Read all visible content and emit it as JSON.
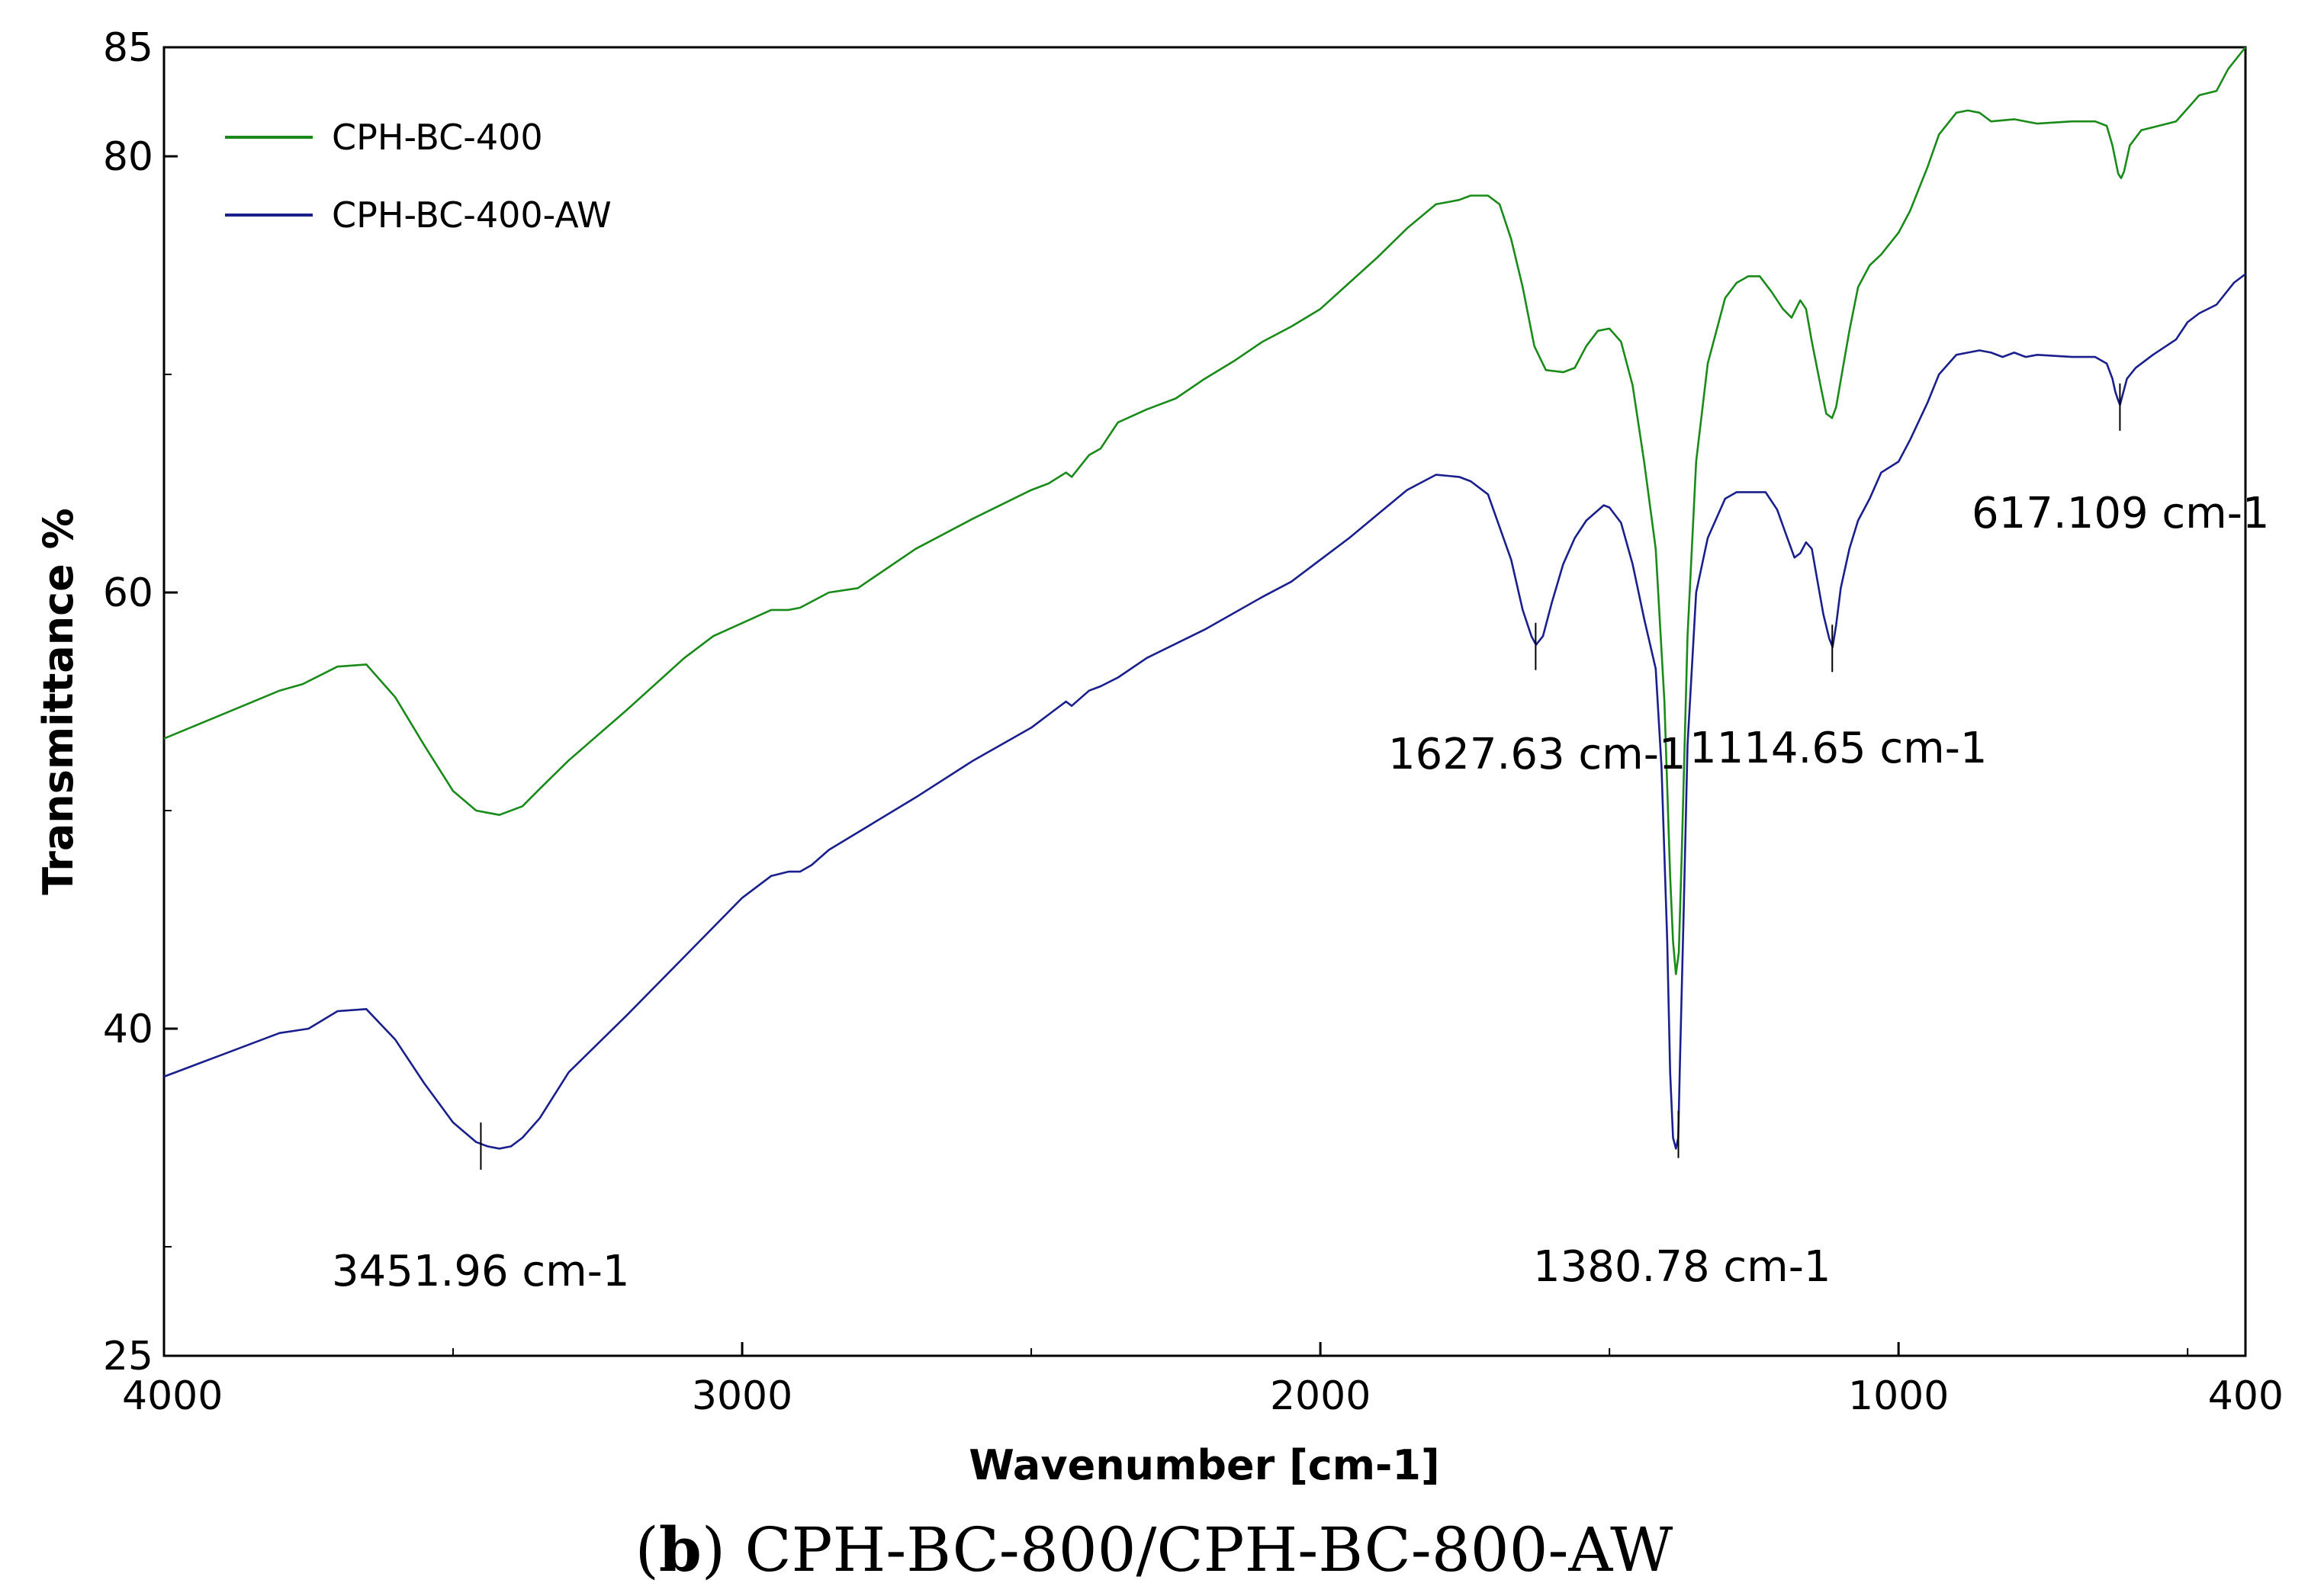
{
  "chart_data": {
    "type": "line",
    "title": "",
    "xlabel": "Wavenumber [cm-1]",
    "ylabel": "Transmittance %",
    "xlim": [
      4000,
      400
    ],
    "ylim": [
      25,
      85
    ],
    "xticks": [
      4000,
      3000,
      2000,
      1000,
      400
    ],
    "xtick_labels": [
      "4000",
      "3000",
      "2000",
      "1000",
      "400"
    ],
    "yticks": [
      25,
      40,
      60,
      80,
      85
    ],
    "ytick_labels": [
      "25",
      "40",
      "60",
      "80",
      "85"
    ],
    "legend_position": "top-left",
    "series": [
      {
        "name": "CPH-BC-400",
        "color": "#1a8a1a",
        "x": [
          4000,
          3900,
          3800,
          3760,
          3700,
          3650,
          3600,
          3550,
          3500,
          3460,
          3420,
          3380,
          3350,
          3300,
          3200,
          3100,
          3050,
          2950,
          2920,
          2900,
          2850,
          2800,
          2700,
          2600,
          2500,
          2470,
          2440,
          2430,
          2400,
          2380,
          2350,
          2300,
          2250,
          2200,
          2150,
          2100,
          2050,
          2000,
          1950,
          1900,
          1850,
          1800,
          1760,
          1740,
          1710,
          1690,
          1670,
          1650,
          1630,
          1610,
          1580,
          1560,
          1540,
          1520,
          1500,
          1480,
          1460,
          1440,
          1420,
          1405,
          1395,
          1390,
          1385,
          1380,
          1375,
          1365,
          1350,
          1330,
          1300,
          1280,
          1260,
          1240,
          1220,
          1200,
          1185,
          1170,
          1160,
          1150,
          1135,
          1125,
          1115,
          1108,
          1095,
          1085,
          1070,
          1050,
          1030,
          1000,
          980,
          950,
          930,
          900,
          880,
          860,
          850,
          840,
          800,
          760,
          700,
          660,
          640,
          630,
          620,
          615,
          610,
          600,
          580,
          550,
          520,
          500,
          480,
          450,
          430,
          400
        ],
        "values": [
          53.3,
          54.4,
          55.5,
          55.8,
          56.6,
          56.7,
          55.2,
          53.0,
          50.9,
          50.0,
          49.8,
          50.2,
          51.0,
          52.3,
          54.6,
          57.0,
          58.0,
          59.2,
          59.2,
          59.3,
          60.0,
          60.2,
          62.0,
          63.4,
          64.7,
          65.0,
          65.5,
          65.3,
          66.3,
          66.6,
          67.8,
          68.4,
          68.9,
          69.8,
          70.6,
          71.5,
          72.2,
          73.0,
          74.2,
          75.4,
          76.7,
          77.8,
          78.0,
          78.2,
          78.2,
          77.8,
          76.2,
          74.0,
          71.3,
          70.2,
          70.1,
          70.3,
          71.3,
          72.0,
          72.1,
          71.5,
          69.5,
          66.0,
          62.0,
          55.0,
          47.0,
          44.0,
          42.5,
          43.5,
          48.0,
          58.0,
          66.0,
          70.5,
          73.5,
          74.2,
          74.5,
          74.5,
          73.8,
          73.0,
          72.6,
          73.4,
          73.0,
          71.5,
          69.5,
          68.2,
          68.0,
          68.5,
          70.5,
          72.0,
          74.0,
          75.0,
          75.5,
          76.5,
          77.5,
          79.5,
          81.0,
          82.0,
          82.1,
          82.0,
          81.8,
          81.6,
          81.7,
          81.5,
          81.6,
          81.6,
          81.4,
          80.5,
          79.2,
          79.0,
          79.3,
          80.5,
          81.2,
          81.4,
          81.6,
          82.2,
          82.8,
          83.0,
          84.0,
          85.0
        ]
      },
      {
        "name": "CPH-BC-400-AW",
        "color": "#1a1f8c",
        "x": [
          4000,
          3900,
          3800,
          3750,
          3700,
          3650,
          3600,
          3550,
          3500,
          3460,
          3440,
          3420,
          3400,
          3380,
          3350,
          3300,
          3200,
          3100,
          3000,
          2950,
          2920,
          2900,
          2880,
          2850,
          2800,
          2700,
          2600,
          2500,
          2460,
          2440,
          2430,
          2400,
          2380,
          2350,
          2300,
          2200,
          2100,
          2050,
          2000,
          1950,
          1900,
          1850,
          1800,
          1760,
          1740,
          1710,
          1690,
          1670,
          1650,
          1635,
          1627,
          1615,
          1600,
          1580,
          1560,
          1540,
          1510,
          1500,
          1480,
          1460,
          1440,
          1420,
          1410,
          1400,
          1395,
          1390,
          1385,
          1381,
          1378,
          1372,
          1365,
          1350,
          1330,
          1300,
          1280,
          1250,
          1230,
          1210,
          1195,
          1180,
          1170,
          1160,
          1150,
          1140,
          1130,
          1120,
          1114,
          1108,
          1100,
          1085,
          1070,
          1050,
          1030,
          1000,
          980,
          950,
          930,
          900,
          880,
          860,
          840,
          820,
          800,
          780,
          760,
          700,
          660,
          640,
          630,
          625,
          620,
          617,
          613,
          605,
          590,
          560,
          520,
          500,
          480,
          450,
          420,
          400
        ],
        "values": [
          37.8,
          38.8,
          39.8,
          40.0,
          40.8,
          40.9,
          39.5,
          37.5,
          35.7,
          34.8,
          34.6,
          34.5,
          34.6,
          35.0,
          35.9,
          38.0,
          40.6,
          43.3,
          46.0,
          47.0,
          47.2,
          47.2,
          47.5,
          48.2,
          49.0,
          50.6,
          52.3,
          53.8,
          54.6,
          55.0,
          54.8,
          55.5,
          55.7,
          56.1,
          57.0,
          58.3,
          59.8,
          60.5,
          61.5,
          62.5,
          63.6,
          64.7,
          65.4,
          65.3,
          65.1,
          64.5,
          63.0,
          61.5,
          59.2,
          58.0,
          57.6,
          58.0,
          59.5,
          61.3,
          62.5,
          63.3,
          64.0,
          63.9,
          63.2,
          61.3,
          58.8,
          56.5,
          52.0,
          44.0,
          38.0,
          35.0,
          34.5,
          35.0,
          38.5,
          45.0,
          53.0,
          60.0,
          62.5,
          64.3,
          64.6,
          64.6,
          64.6,
          63.8,
          62.7,
          61.6,
          61.8,
          62.3,
          62.0,
          60.5,
          59.0,
          57.9,
          57.5,
          58.5,
          60.2,
          62.0,
          63.3,
          64.3,
          65.5,
          66.0,
          67.0,
          68.7,
          70.0,
          70.9,
          71.0,
          71.1,
          71.0,
          70.8,
          71.0,
          70.8,
          70.9,
          70.8,
          70.8,
          70.5,
          69.8,
          69.2,
          68.8,
          68.6,
          69.0,
          69.8,
          70.3,
          70.9,
          71.6,
          72.4,
          72.8,
          73.2,
          74.2,
          74.6
        ]
      }
    ],
    "annotations": [
      {
        "label": "3451.96 cm-1",
        "x": 3451.96
      },
      {
        "label": "1627.63 cm-1",
        "x": 1627.63
      },
      {
        "label": "1114.65 cm-1",
        "x": 1114.65
      },
      {
        "label": "1380.78 cm-1",
        "x": 1380.78
      },
      {
        "label": "617.109 cm-1",
        "x": 617.109
      }
    ]
  },
  "caption": {
    "letter": "b",
    "text": "CPH-BC-800/CPH-BC-800-AW"
  }
}
